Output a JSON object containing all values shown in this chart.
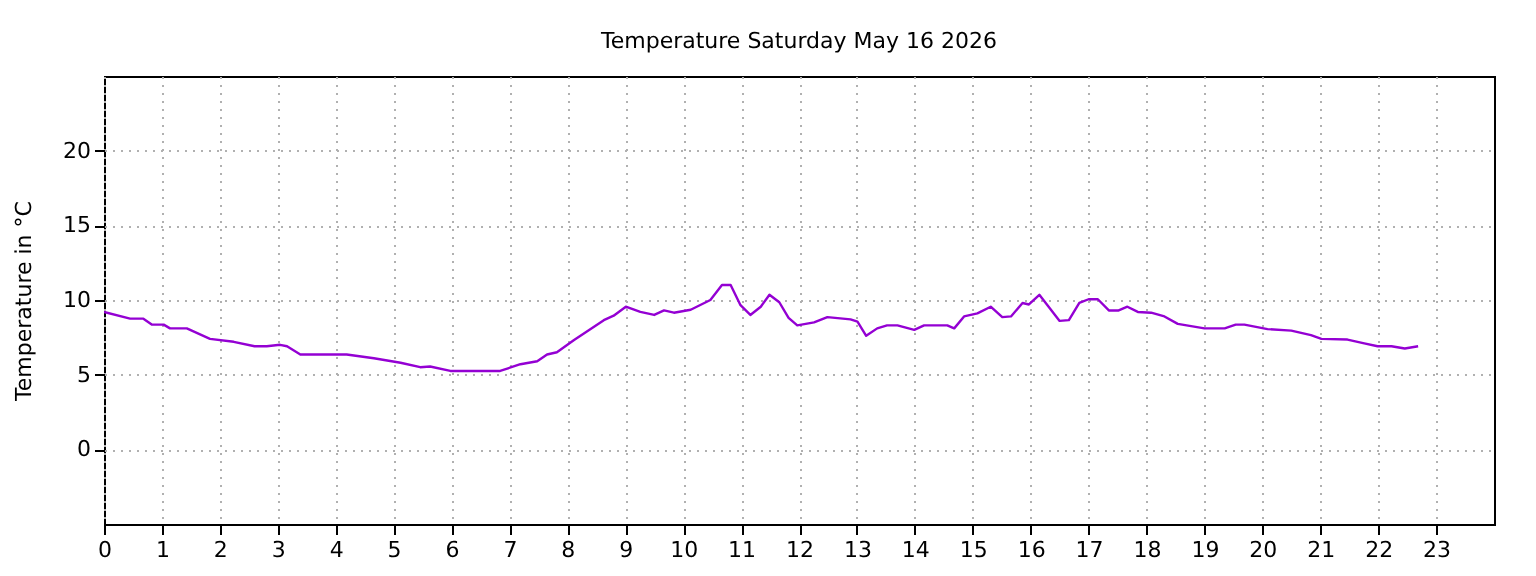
{
  "chart_data": {
    "type": "line",
    "title": "Temperature Saturday May 16 2026",
    "ylabel": "Temperature in °C",
    "x": [
      0,
      0.45,
      0.68,
      0.83,
      1.03,
      1.14,
      1.43,
      1.83,
      2.24,
      2.6,
      2.81,
      3.04,
      3.16,
      3.39,
      4.19,
      4.66,
      5.12,
      5.46,
      5.63,
      5.98,
      6.84,
      7.19,
      7.48,
      7.65,
      7.82,
      8.11,
      8.63,
      8.8,
      9.01,
      9.26,
      9.5,
      9.67,
      9.84,
      10.13,
      10.47,
      10.67,
      10.82,
      10.99,
      11.16,
      11.34,
      11.49,
      11.66,
      11.82,
      11.97,
      12.26,
      12.49,
      12.89,
      13.01,
      13.16,
      13.35,
      13.52,
      13.7,
      13.99,
      14.16,
      14.56,
      14.68,
      14.85,
      15.08,
      15.31,
      15.51,
      15.66,
      15.86,
      15.97,
      16.15,
      16.5,
      16.66,
      16.84,
      17.0,
      17.16,
      17.35,
      17.52,
      17.67,
      17.85,
      18.08,
      18.31,
      18.54,
      19.0,
      19.35,
      19.54,
      19.69,
      20.09,
      20.5,
      20.84,
      21.02,
      21.47,
      21.76,
      21.99,
      22.23,
      22.46,
      22.69
    ],
    "series": [
      {
        "color": "#9400d3",
        "values": [
          9.2,
          8.75,
          8.75,
          8.35,
          8.35,
          8.1,
          8.1,
          7.4,
          7.2,
          6.9,
          6.9,
          7.0,
          6.9,
          6.35,
          6.35,
          6.1,
          5.8,
          5.5,
          5.55,
          5.25,
          5.25,
          5.7,
          5.9,
          6.35,
          6.5,
          7.3,
          8.65,
          8.95,
          9.55,
          9.2,
          9.0,
          9.3,
          9.15,
          9.35,
          10.0,
          11.0,
          11.0,
          9.65,
          9.0,
          9.55,
          10.35,
          9.85,
          8.8,
          8.3,
          8.5,
          8.85,
          8.7,
          8.55,
          7.6,
          8.1,
          8.3,
          8.3,
          8.0,
          8.3,
          8.3,
          8.1,
          8.9,
          9.1,
          9.55,
          8.85,
          8.9,
          9.8,
          9.7,
          10.35,
          8.6,
          8.65,
          9.8,
          10.05,
          10.05,
          9.3,
          9.3,
          9.55,
          9.2,
          9.15,
          8.9,
          8.4,
          8.1,
          8.1,
          8.35,
          8.35,
          8.05,
          7.95,
          7.65,
          7.4,
          7.35,
          7.1,
          6.9,
          6.9,
          6.75,
          6.9
        ]
      }
    ],
    "xlim": [
      0,
      24
    ],
    "xticks": [
      0,
      1,
      2,
      3,
      4,
      5,
      6,
      7,
      8,
      9,
      10,
      11,
      12,
      13,
      14,
      15,
      16,
      17,
      18,
      19,
      20,
      21,
      22,
      23
    ],
    "ylim": [
      -5,
      25
    ],
    "yticks": [
      0,
      5,
      10,
      15,
      20
    ],
    "grid": true,
    "legend": false,
    "marker": "none",
    "line_style": "solid"
  }
}
